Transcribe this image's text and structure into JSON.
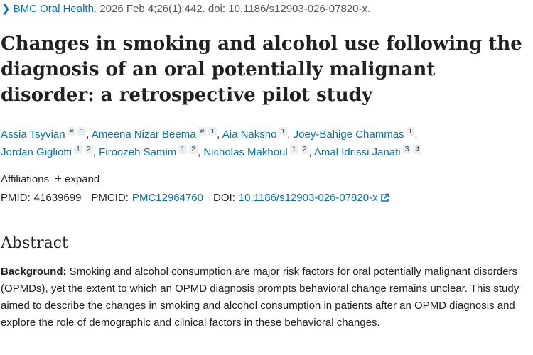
{
  "citation": {
    "journal": "BMC Oral Health.",
    "details": " 2026 Feb 4;26(1):442. doi: 10.1186/s12903-026-07820-x."
  },
  "title": "Changes in smoking and alcohol use following the diagnosis of an oral potentially malignant disorder: a retrospective pilot study",
  "authors": [
    {
      "name": "Assia Tsyvian",
      "sups": [
        "#",
        "1"
      ]
    },
    {
      "name": "Ameena Nizar Beema",
      "sups": [
        "#",
        "1"
      ]
    },
    {
      "name": "Aia Naksho",
      "sups": [
        "1"
      ]
    },
    {
      "name": "Joey-Bahige Chammas",
      "sups": [
        "1"
      ]
    },
    {
      "name": "Jordan Gigliotti",
      "sups": [
        "1",
        "2"
      ]
    },
    {
      "name": "Firoozeh Samim",
      "sups": [
        "1",
        "2"
      ]
    },
    {
      "name": "Nicholas Makhoul",
      "sups": [
        "1",
        "2"
      ]
    },
    {
      "name": "Amal Idrissi Janati",
      "sups": [
        "3",
        "4"
      ]
    }
  ],
  "affiliations": {
    "label": "Affiliations",
    "expand_label": "expand"
  },
  "identifiers": {
    "pmid_label": "PMID:",
    "pmid": "41639699",
    "pmcid_label": "PMCID:",
    "pmcid": "PMC12964760",
    "doi_label": "DOI:",
    "doi": "10.1186/s12903-026-07820-x"
  },
  "abstract": {
    "heading": "Abstract",
    "background_label": "Background:",
    "background_text": " Smoking and alcohol consumption are major risk factors for oral potentially malignant disorders (OPMDs), yet the extent to which an OPMD diagnosis prompts behavioral change remains unclear. This study aimed to describe the changes in smoking and alcohol consumption in patients after an OPMD diagnosis and explore the role of demographic and clinical factors in these behavioral changes."
  },
  "colors": {
    "link": "#0071bc",
    "text": "#212121",
    "sup_bg": "#eceff1"
  }
}
